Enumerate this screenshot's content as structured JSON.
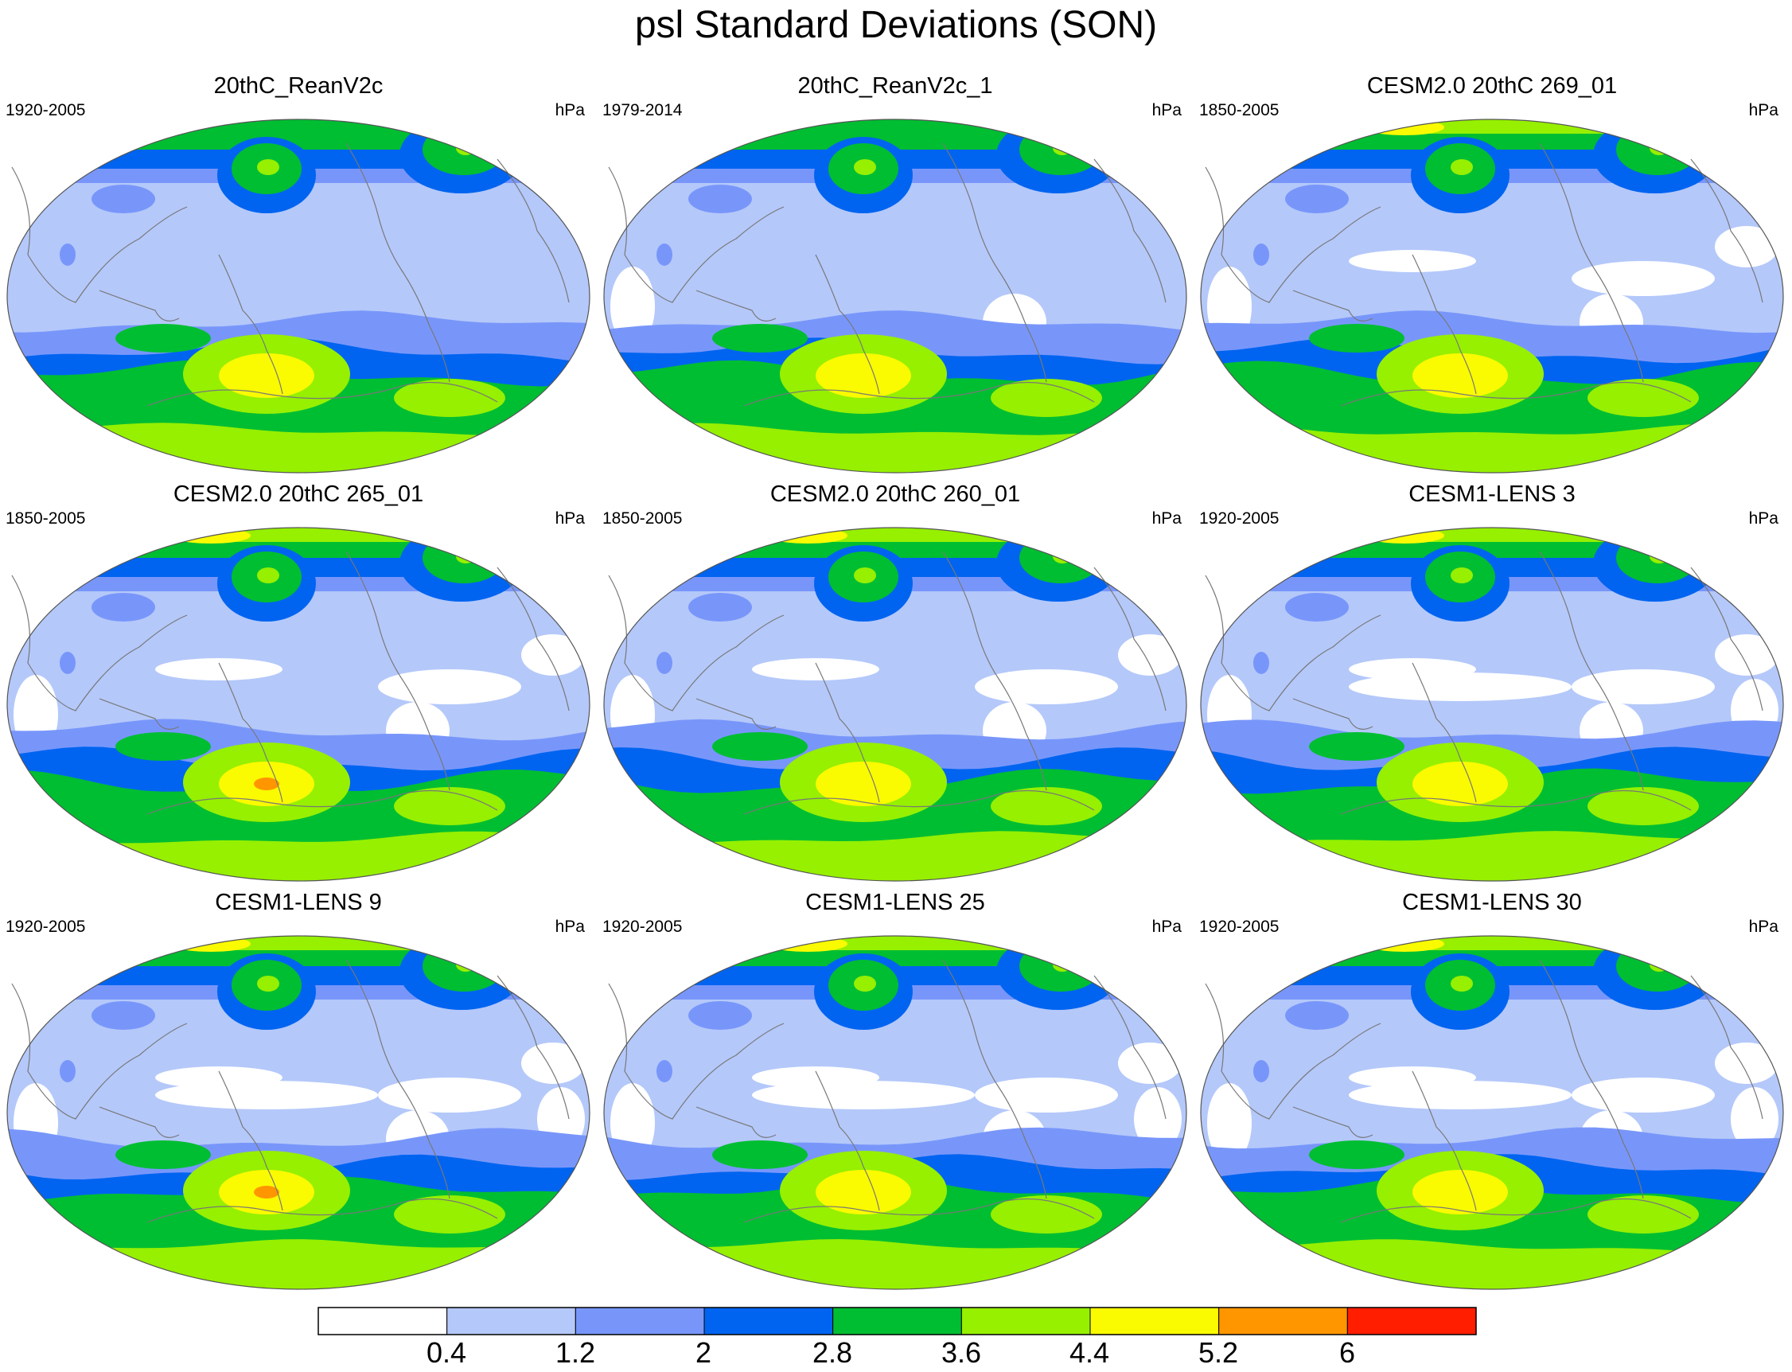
{
  "title": "psl Standard Deviations (SON)",
  "colors": {
    "levels": [
      "#ffffff",
      "#b4c8fa",
      "#7896fa",
      "#0064f0",
      "#00be32",
      "#96f000",
      "#fafa00",
      "#ff9600",
      "#ff1e00"
    ],
    "coast": "#787878"
  },
  "panels": [
    {
      "title": "20thC_ReanV2c",
      "period": "1920-2005",
      "units": "hPa",
      "variant": 0
    },
    {
      "title": "20thC_ReanV2c_1",
      "period": "1979-2014",
      "units": "hPa",
      "variant": 1
    },
    {
      "title": "CESM2.0 20thC 269_01",
      "period": "1850-2005",
      "units": "hPa",
      "variant": 2
    },
    {
      "title": "CESM2.0 20thC 265_01",
      "period": "1850-2005",
      "units": "hPa",
      "variant": 3
    },
    {
      "title": "CESM2.0 20thC 260_01",
      "period": "1850-2005",
      "units": "hPa",
      "variant": 4
    },
    {
      "title": "CESM1-LENS 3",
      "period": "1920-2005",
      "units": "hPa",
      "variant": 5
    },
    {
      "title": "CESM1-LENS 9",
      "period": "1920-2005",
      "units": "hPa",
      "variant": 6
    },
    {
      "title": "CESM1-LENS 25",
      "period": "1920-2005",
      "units": "hPa",
      "variant": 7
    },
    {
      "title": "CESM1-LENS 30",
      "period": "1920-2005",
      "units": "hPa",
      "variant": 8
    }
  ],
  "colorbar": {
    "labels": [
      "0.4",
      "1.2",
      "2",
      "2.8",
      "3.6",
      "4.4",
      "5.2",
      "6"
    ]
  }
}
